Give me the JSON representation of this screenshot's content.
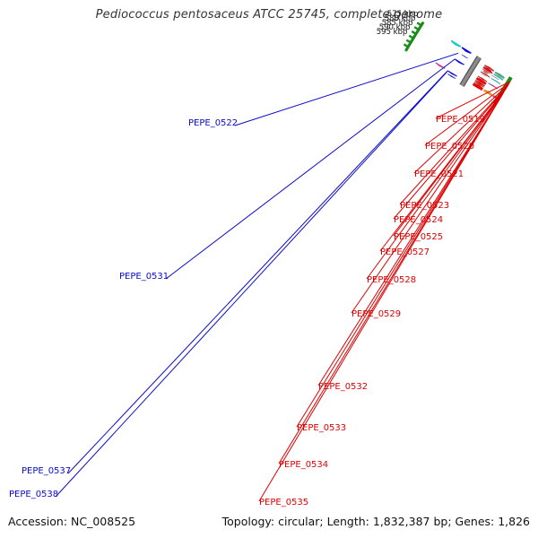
{
  "title": "Pediococcus pentosaceus ATCC 25745, complete genome",
  "accession_text": "Accession: NC_008525",
  "summary_text": "Topology: circular; Length: 1,832,387 bp; Genes: 1,826",
  "colors": {
    "backbone": "#8c8c8c",
    "tick": "#1a8c1a",
    "forward_label": "#0a0acc",
    "reverse_label": "#dd0000",
    "cds_red": "#ff0000",
    "cds_blue": "#0000ff",
    "cds_cyan": "#00e0e0",
    "cds_orange": "#ff9900",
    "cds_magenta": "#ff2090"
  },
  "scale_labels": [
    "575 kbp",
    "580 kbp",
    "585 kbp",
    "590 kbp",
    "595 kbp"
  ],
  "forward_gene_labels": [
    "PEPE_0522",
    "PEPE_0531",
    "PEPE_0537",
    "PEPE_0538"
  ],
  "reverse_gene_labels": [
    "PEPE_0519",
    "PEPE_0520",
    "PEPE_0521",
    "PEPE_0523",
    "PEPE_0524",
    "PEPE_0525",
    "PEPE_0527",
    "PEPE_0528",
    "PEPE_0529",
    "PEPE_0532",
    "PEPE_0533",
    "PEPE_0534",
    "PEPE_0535"
  ]
}
